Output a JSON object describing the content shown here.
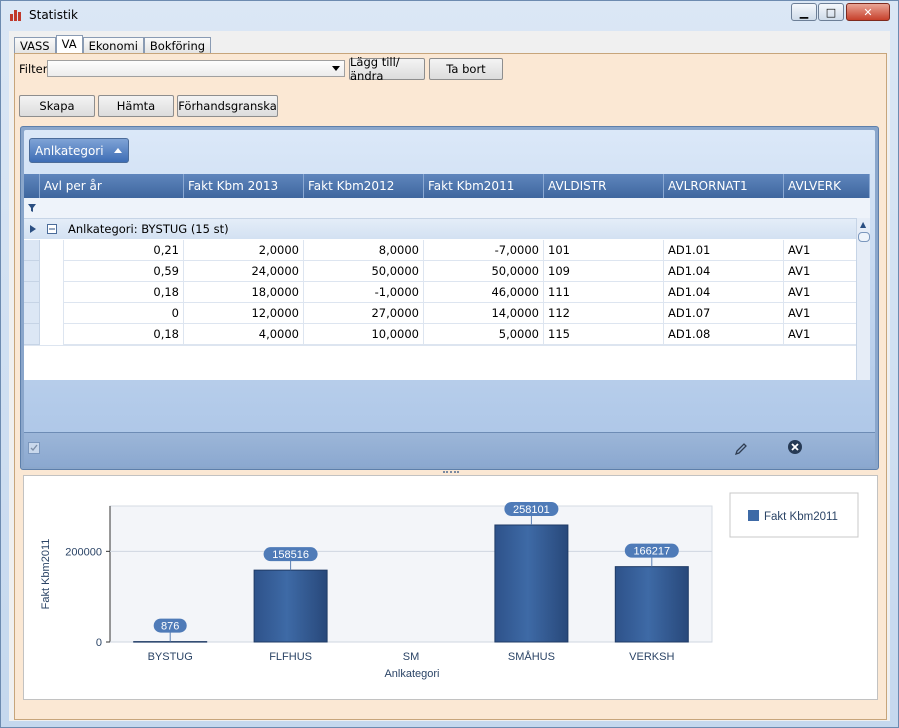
{
  "window": {
    "title": "Statistik"
  },
  "tabs": [
    {
      "label": "VASS",
      "active": false
    },
    {
      "label": "VA",
      "active": true
    },
    {
      "label": "Ekonomi",
      "active": false
    },
    {
      "label": "Bokföring",
      "active": false
    }
  ],
  "filter": {
    "label": "Filter",
    "value": "",
    "add_label": "Lägg till/ändra",
    "remove_label": "Ta bort"
  },
  "actions": {
    "create": "Skapa",
    "fetch": "Hämta",
    "preview": "Förhandsgranska"
  },
  "grid": {
    "group_button": "Anlkategori",
    "columns": [
      "Avl per år",
      "Fakt Kbm 2013",
      "Fakt Kbm2012",
      "Fakt Kbm2011",
      "AVLDISTR",
      "AVLRORNAT1",
      "AVLVERK"
    ],
    "group_row": "Anlkategori: BYSTUG (15 st)",
    "rows": [
      [
        "0,21",
        "2,0000",
        "8,0000",
        "-7,0000",
        "101",
        "AD1.01",
        "AV1"
      ],
      [
        "0,59",
        "24,0000",
        "50,0000",
        "50,0000",
        "109",
        "AD1.04",
        "AV1"
      ],
      [
        "0,18",
        "18,0000",
        "-1,0000",
        "46,0000",
        "111",
        "AD1.04",
        "AV1"
      ],
      [
        "0",
        "12,0000",
        "27,0000",
        "14,0000",
        "112",
        "AD1.07",
        "AV1"
      ],
      [
        "0,18",
        "4,0000",
        "10,0000",
        "5,0000",
        "115",
        "AD1.08",
        "AV1"
      ]
    ]
  },
  "icons": {
    "edit": "pencil-icon",
    "delete": "close-circle-icon",
    "check": "checkbox-icon"
  },
  "colors": {
    "bar": "#3e6aa6",
    "header": "#4a73ab",
    "panel": "#fbe8d4"
  },
  "chart_data": {
    "type": "bar",
    "categories": [
      "BYSTUG",
      "FLFHUS",
      "SM",
      "SMÅHUS",
      "VERKSH"
    ],
    "series": [
      {
        "name": "Fakt Kbm2011",
        "values": [
          876,
          158516,
          0,
          258101,
          166217
        ]
      }
    ],
    "value_labels": [
      "876",
      "158516",
      "",
      "258101",
      "166217"
    ],
    "xlabel": "Anlkategori",
    "ylabel": "Fakt Kbm2011",
    "yticks": [
      "0",
      "200000"
    ],
    "ylim": [
      0,
      300000
    ],
    "legend": "top-right",
    "grid": true
  }
}
